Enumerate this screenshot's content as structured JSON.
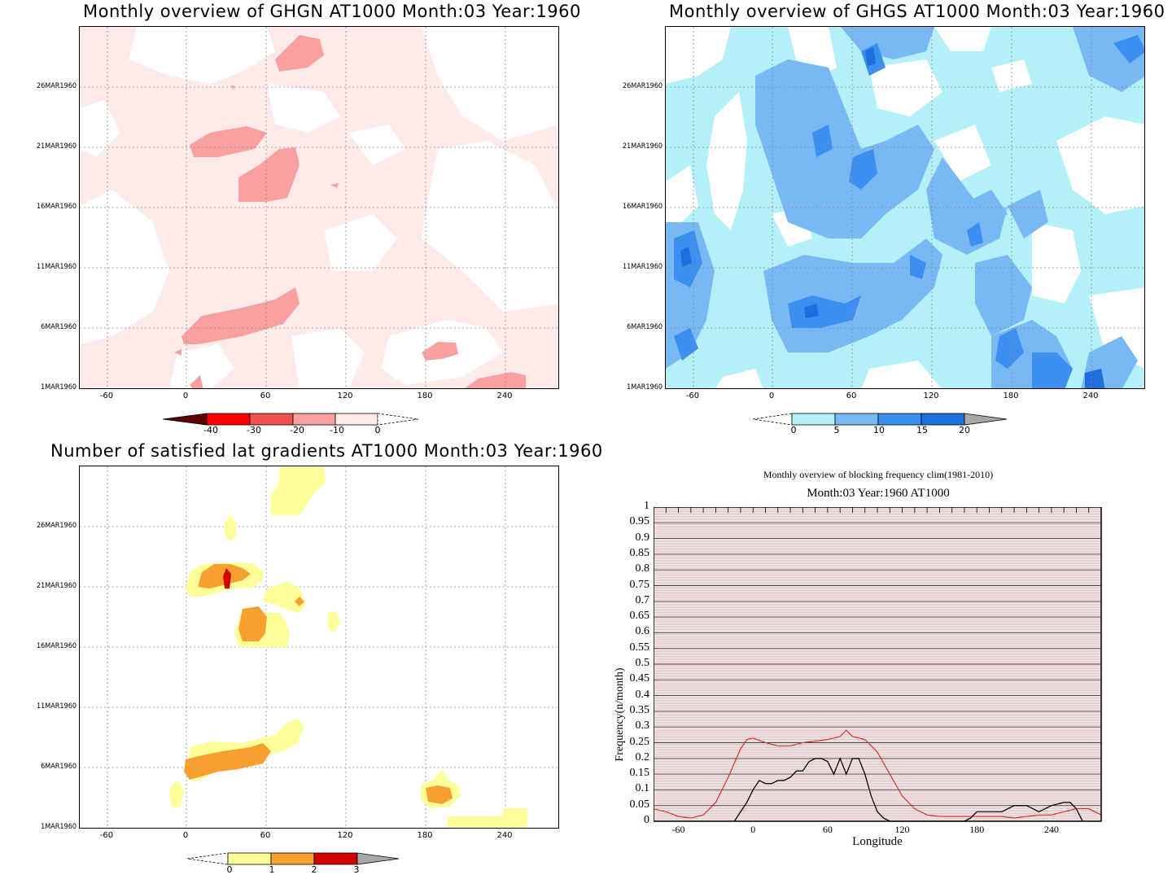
{
  "panels": {
    "ghgn": {
      "title": "Monthly overview of GHGN AT1000 Month:03 Year:1960",
      "yticks": [
        "26MAR1960",
        "21MAR1960",
        "16MAR1960",
        "11MAR1960",
        "6MAR1960",
        "1MAR1960"
      ],
      "xticks": [
        "-60",
        "0",
        "60",
        "120",
        "180",
        "240"
      ],
      "colorbar": {
        "labels": [
          "-40",
          "-30",
          "-20",
          "-10",
          "0"
        ],
        "colors": [
          "#5a0000",
          "#ff0000",
          "#f05050",
          "#f9a0a0",
          "#ffeaea"
        ]
      }
    },
    "ghgs": {
      "title": "Monthly overview of GHGS AT1000 Month:03 Year:1960",
      "yticks": [
        "26MAR1960",
        "21MAR1960",
        "16MAR1960",
        "11MAR1960",
        "6MAR1960",
        "1MAR1960"
      ],
      "xticks": [
        "-60",
        "0",
        "60",
        "120",
        "180",
        "240"
      ],
      "colorbar": {
        "labels": [
          "0",
          "5",
          "10",
          "15",
          "20"
        ],
        "colors": [
          "#b4f0f8",
          "#78b8f4",
          "#3c8ef0",
          "#1e6ee0",
          "#a8a8a8"
        ]
      }
    },
    "grad": {
      "title": "Number of satisfied lat gradients AT1000 Month:03 Year:1960",
      "yticks": [
        "26MAR1960",
        "21MAR1960",
        "16MAR1960",
        "11MAR1960",
        "6MAR1960",
        "1MAR1960"
      ],
      "xticks": [
        "-60",
        "0",
        "60",
        "120",
        "180",
        "240"
      ],
      "colorbar": {
        "labels": [
          "0",
          "1",
          "2",
          "3"
        ],
        "colors": [
          "#ffff9a",
          "#f7a030",
          "#d00000",
          "#a8a8a8"
        ]
      }
    },
    "freq": {
      "title1": "Monthly overview of blocking frequency clim(1981-2010)",
      "title2": "Month:03 Year:1960  AT1000",
      "ylabel": "Frequency(n/month)",
      "xlabel": "Longitude",
      "yticks": [
        "1",
        "0.95",
        "0.9",
        "0.85",
        "0.8",
        "0.75",
        "0.7",
        "0.65",
        "0.6",
        "0.55",
        "0.5",
        "0.45",
        "0.4",
        "0.35",
        "0.3",
        "0.25",
        "0.2",
        "0.15",
        "0.1",
        "0.05",
        "0"
      ],
      "xticks": [
        "-60",
        "0",
        "60",
        "120",
        "180",
        "240"
      ]
    }
  },
  "chart_data": [
    {
      "type": "heatmap",
      "title": "Monthly overview of GHGN AT1000 Month:03 Year:1960",
      "xlim": [
        -80,
        280
      ],
      "x_ticks": [
        -60,
        0,
        60,
        120,
        180,
        240
      ],
      "y_ticks": [
        "1MAR1960",
        "6MAR1960",
        "11MAR1960",
        "16MAR1960",
        "21MAR1960",
        "26MAR1960"
      ],
      "levels": [
        -40,
        -30,
        -20,
        -10,
        0
      ]
    },
    {
      "type": "heatmap",
      "title": "Monthly overview of GHGS AT1000 Month:03 Year:1960",
      "xlim": [
        -80,
        280
      ],
      "x_ticks": [
        -60,
        0,
        60,
        120,
        180,
        240
      ],
      "y_ticks": [
        "1MAR1960",
        "6MAR1960",
        "11MAR1960",
        "16MAR1960",
        "21MAR1960",
        "26MAR1960"
      ],
      "levels": [
        0,
        5,
        10,
        15,
        20
      ]
    },
    {
      "type": "heatmap",
      "title": "Number of satisfied lat gradients AT1000 Month:03 Year:1960",
      "xlim": [
        -80,
        280
      ],
      "x_ticks": [
        -60,
        0,
        60,
        120,
        180,
        240
      ],
      "y_ticks": [
        "1MAR1960",
        "6MAR1960",
        "11MAR1960",
        "16MAR1960",
        "21MAR1960",
        "26MAR1960"
      ],
      "levels": [
        0,
        1,
        2,
        3
      ]
    },
    {
      "type": "line",
      "title": "Monthly overview of blocking frequency clim(1981-2010)",
      "subtitle": "Month:03 Year:1960  AT1000",
      "xlabel": "Longitude",
      "ylabel": "Frequency(n/month)",
      "xlim": [
        -80,
        280
      ],
      "ylim": [
        0,
        1
      ],
      "series": [
        {
          "color": "#e02020",
          "x": [
            -80,
            -70,
            -60,
            -50,
            -40,
            -30,
            -20,
            -10,
            -5,
            0,
            10,
            20,
            30,
            40,
            50,
            60,
            70,
            75,
            80,
            90,
            100,
            110,
            120,
            130,
            140,
            150,
            160,
            170,
            180,
            190,
            200,
            210,
            220,
            230,
            240,
            250,
            260,
            270,
            280
          ],
          "y": [
            0.04,
            0.03,
            0.015,
            0.01,
            0.02,
            0.06,
            0.14,
            0.23,
            0.26,
            0.265,
            0.25,
            0.24,
            0.24,
            0.25,
            0.255,
            0.26,
            0.27,
            0.29,
            0.27,
            0.26,
            0.22,
            0.15,
            0.08,
            0.04,
            0.02,
            0.015,
            0.015,
            0.015,
            0.015,
            0.015,
            0.015,
            0.01,
            0.015,
            0.02,
            0.02,
            0.03,
            0.04,
            0.04,
            0.02
          ]
        },
        {
          "color": "#000000",
          "x": [
            -15,
            -10,
            -5,
            0,
            5,
            10,
            15,
            20,
            25,
            30,
            35,
            40,
            45,
            50,
            55,
            60,
            65,
            70,
            75,
            80,
            85,
            90,
            95,
            100,
            105,
            110,
            115,
            170,
            175,
            180,
            190,
            200,
            205,
            210,
            220,
            230,
            240,
            250,
            255,
            260,
            265
          ],
          "y": [
            0,
            0.03,
            0.06,
            0.1,
            0.13,
            0.12,
            0.12,
            0.13,
            0.13,
            0.14,
            0.16,
            0.16,
            0.19,
            0.2,
            0.2,
            0.19,
            0.15,
            0.2,
            0.15,
            0.2,
            0.2,
            0.15,
            0.08,
            0.03,
            0.01,
            0,
            0,
            0,
            0.01,
            0.03,
            0.03,
            0.03,
            0.04,
            0.05,
            0.05,
            0.03,
            0.05,
            0.06,
            0.06,
            0.04,
            0
          ]
        }
      ]
    }
  ]
}
